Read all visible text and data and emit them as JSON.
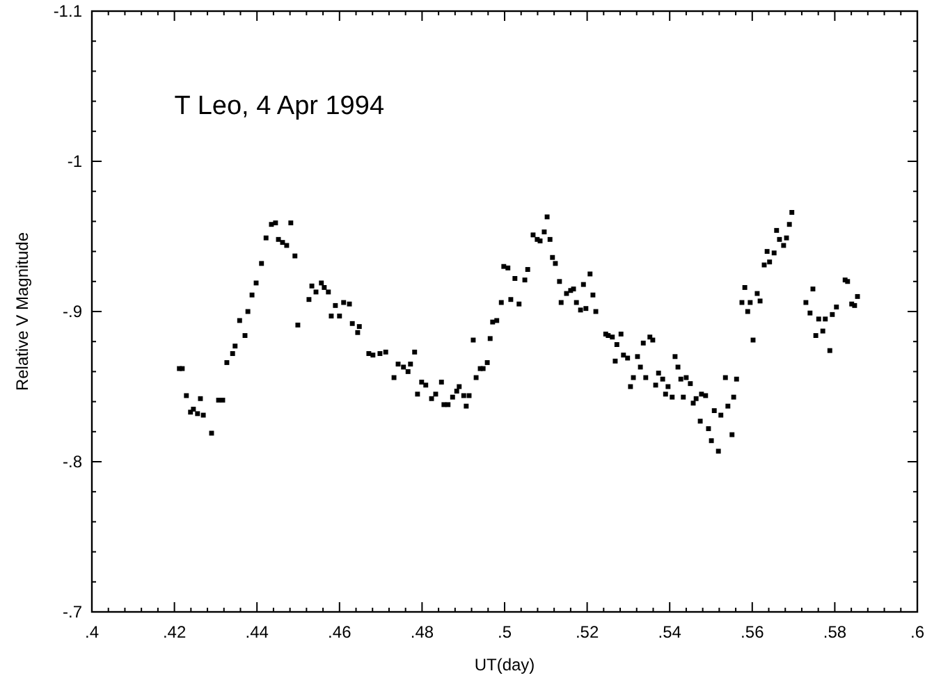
{
  "chart_data": {
    "type": "scatter",
    "title": "T Leo, 4 Apr 1994",
    "xlabel": "UT(day)",
    "ylabel": "Relative V Magnitude",
    "marker": "square",
    "grid": false,
    "xlim": [
      0.4,
      0.6
    ],
    "ylim": [
      -0.7,
      -1.1
    ],
    "xticks": [
      {
        "value": 0.4,
        "label": ".4"
      },
      {
        "value": 0.404,
        "label": null
      },
      {
        "value": 0.408,
        "label": null
      },
      {
        "value": 0.412,
        "label": null
      },
      {
        "value": 0.416,
        "label": null
      },
      {
        "value": 0.42,
        "label": ".42"
      },
      {
        "value": 0.424,
        "label": null
      },
      {
        "value": 0.428,
        "label": null
      },
      {
        "value": 0.432,
        "label": null
      },
      {
        "value": 0.436,
        "label": null
      },
      {
        "value": 0.44,
        "label": ".44"
      },
      {
        "value": 0.444,
        "label": null
      },
      {
        "value": 0.448,
        "label": null
      },
      {
        "value": 0.452,
        "label": null
      },
      {
        "value": 0.456,
        "label": null
      },
      {
        "value": 0.46,
        "label": ".46"
      },
      {
        "value": 0.464,
        "label": null
      },
      {
        "value": 0.468,
        "label": null
      },
      {
        "value": 0.472,
        "label": null
      },
      {
        "value": 0.476,
        "label": null
      },
      {
        "value": 0.48,
        "label": ".48"
      },
      {
        "value": 0.484,
        "label": null
      },
      {
        "value": 0.488,
        "label": null
      },
      {
        "value": 0.492,
        "label": null
      },
      {
        "value": 0.496,
        "label": null
      },
      {
        "value": 0.5,
        "label": ".5"
      },
      {
        "value": 0.504,
        "label": null
      },
      {
        "value": 0.508,
        "label": null
      },
      {
        "value": 0.512,
        "label": null
      },
      {
        "value": 0.516,
        "label": null
      },
      {
        "value": 0.52,
        "label": ".52"
      },
      {
        "value": 0.524,
        "label": null
      },
      {
        "value": 0.528,
        "label": null
      },
      {
        "value": 0.532,
        "label": null
      },
      {
        "value": 0.536,
        "label": null
      },
      {
        "value": 0.54,
        "label": ".54"
      },
      {
        "value": 0.544,
        "label": null
      },
      {
        "value": 0.548,
        "label": null
      },
      {
        "value": 0.552,
        "label": null
      },
      {
        "value": 0.556,
        "label": null
      },
      {
        "value": 0.56,
        "label": ".56"
      },
      {
        "value": 0.564,
        "label": null
      },
      {
        "value": 0.568,
        "label": null
      },
      {
        "value": 0.572,
        "label": null
      },
      {
        "value": 0.576,
        "label": null
      },
      {
        "value": 0.58,
        "label": ".58"
      },
      {
        "value": 0.584,
        "label": null
      },
      {
        "value": 0.588,
        "label": null
      },
      {
        "value": 0.592,
        "label": null
      },
      {
        "value": 0.596,
        "label": null
      },
      {
        "value": 0.6,
        "label": ".6"
      }
    ],
    "yticks": [
      {
        "value": -0.7,
        "label": "-.7"
      },
      {
        "value": -0.72,
        "label": null
      },
      {
        "value": -0.74,
        "label": null
      },
      {
        "value": -0.76,
        "label": null
      },
      {
        "value": -0.78,
        "label": null
      },
      {
        "value": -0.8,
        "label": "-.8"
      },
      {
        "value": -0.82,
        "label": null
      },
      {
        "value": -0.84,
        "label": null
      },
      {
        "value": -0.86,
        "label": null
      },
      {
        "value": -0.88,
        "label": null
      },
      {
        "value": -0.9,
        "label": "-.9"
      },
      {
        "value": -0.92,
        "label": null
      },
      {
        "value": -0.94,
        "label": null
      },
      {
        "value": -0.96,
        "label": null
      },
      {
        "value": -0.98,
        "label": null
      },
      {
        "value": -1,
        "label": "-1"
      },
      {
        "value": -1.02,
        "label": null
      },
      {
        "value": -1.04,
        "label": null
      },
      {
        "value": -1.06,
        "label": null
      },
      {
        "value": -1.08,
        "label": null
      },
      {
        "value": -1.1,
        "label": "-1.1"
      }
    ],
    "series": [
      {
        "color": "#000000",
        "x": [
          0.4212,
          0.4219,
          0.4229,
          0.4239,
          0.4263,
          0.4246,
          0.4256,
          0.427,
          0.429,
          0.4307,
          0.4317,
          0.4327,
          0.4341,
          0.4347,
          0.4358,
          0.4371,
          0.4378,
          0.4388,
          0.4398,
          0.4411,
          0.4422,
          0.4435,
          0.4445,
          0.4482,
          0.4452,
          0.4462,
          0.4472,
          0.4492,
          0.4499,
          0.4526,
          0.4533,
          0.4543,
          0.4556,
          0.4563,
          0.4573,
          0.458,
          0.46,
          0.459,
          0.461,
          0.4624,
          0.4631,
          0.4648,
          0.4644,
          0.4671,
          0.4681,
          0.4698,
          0.4712,
          0.4732,
          0.4742,
          0.4755,
          0.4766,
          0.4772,
          0.4782,
          0.4789,
          0.4799,
          0.4809,
          0.4823,
          0.4833,
          0.4847,
          0.4853,
          0.4863,
          0.4874,
          0.4884,
          0.489,
          0.4901,
          0.4914,
          0.4907,
          0.4924,
          0.4931,
          0.4941,
          0.4948,
          0.4958,
          0.4965,
          0.4971,
          0.4981,
          0.4992,
          0.5015,
          0.5035,
          0.4998,
          0.5008,
          0.5025,
          0.5049,
          0.5056,
          0.5069,
          0.5079,
          0.5086,
          0.5096,
          0.5103,
          0.511,
          0.5116,
          0.5123,
          0.5133,
          0.5137,
          0.515,
          0.516,
          0.5167,
          0.5174,
          0.5184,
          0.5197,
          0.5191,
          0.5207,
          0.5214,
          0.5221,
          0.5245,
          0.5251,
          0.5261,
          0.5272,
          0.5282,
          0.5288,
          0.5298,
          0.5268,
          0.5322,
          0.5336,
          0.5352,
          0.5359,
          0.5329,
          0.5312,
          0.5305,
          0.5342,
          0.5373,
          0.5383,
          0.5396,
          0.5366,
          0.539,
          0.5406,
          0.5413,
          0.542,
          0.5427,
          0.544,
          0.545,
          0.5433,
          0.5457,
          0.5464,
          0.5477,
          0.5487,
          0.5535,
          0.5562,
          0.5555,
          0.5508,
          0.5524,
          0.5541,
          0.5474,
          0.5494,
          0.5501,
          0.5518,
          0.5551,
          0.5602,
          0.5575,
          0.5582,
          0.5595,
          0.5612,
          0.5619,
          0.5589,
          0.5629,
          0.5642,
          0.5636,
          0.5653,
          0.5676,
          0.5666,
          0.5683,
          0.5659,
          0.569,
          0.5696,
          0.5747,
          0.573,
          0.574,
          0.5761,
          0.5777,
          0.5754,
          0.5771,
          0.5788,
          0.5794,
          0.5804,
          0.5825,
          0.5831,
          0.5841,
          0.5848,
          0.5855
        ],
        "values": [
          -0.862,
          -0.862,
          -0.844,
          -0.833,
          -0.842,
          -0.835,
          -0.832,
          -0.831,
          -0.819,
          -0.841,
          -0.841,
          -0.866,
          -0.872,
          -0.877,
          -0.894,
          -0.884,
          -0.9,
          -0.911,
          -0.919,
          -0.932,
          -0.949,
          -0.958,
          -0.959,
          -0.959,
          -0.948,
          -0.946,
          -0.944,
          -0.937,
          -0.891,
          -0.908,
          -0.917,
          -0.913,
          -0.919,
          -0.916,
          -0.913,
          -0.897,
          -0.897,
          -0.904,
          -0.906,
          -0.905,
          -0.892,
          -0.89,
          -0.886,
          -0.872,
          -0.871,
          -0.872,
          -0.873,
          -0.856,
          -0.865,
          -0.863,
          -0.86,
          -0.865,
          -0.873,
          -0.845,
          -0.853,
          -0.851,
          -0.842,
          -0.845,
          -0.853,
          -0.838,
          -0.838,
          -0.843,
          -0.847,
          -0.85,
          -0.844,
          -0.844,
          -0.837,
          -0.881,
          -0.856,
          -0.862,
          -0.862,
          -0.866,
          -0.882,
          -0.893,
          -0.894,
          -0.906,
          -0.908,
          -0.905,
          -0.93,
          -0.929,
          -0.922,
          -0.921,
          -0.928,
          -0.951,
          -0.948,
          -0.947,
          -0.953,
          -0.963,
          -0.948,
          -0.936,
          -0.932,
          -0.92,
          -0.906,
          -0.912,
          -0.914,
          -0.915,
          -0.906,
          -0.901,
          -0.902,
          -0.918,
          -0.925,
          -0.911,
          -0.9,
          -0.885,
          -0.884,
          -0.883,
          -0.878,
          -0.885,
          -0.871,
          -0.869,
          -0.867,
          -0.87,
          -0.879,
          -0.883,
          -0.881,
          -0.863,
          -0.856,
          -0.85,
          -0.856,
          -0.859,
          -0.855,
          -0.85,
          -0.851,
          -0.845,
          -0.843,
          -0.87,
          -0.863,
          -0.855,
          -0.856,
          -0.852,
          -0.843,
          -0.839,
          -0.842,
          -0.845,
          -0.844,
          -0.856,
          -0.855,
          -0.843,
          -0.834,
          -0.831,
          -0.837,
          -0.827,
          -0.822,
          -0.814,
          -0.807,
          -0.818,
          -0.881,
          -0.906,
          -0.916,
          -0.906,
          -0.912,
          -0.907,
          -0.9,
          -0.931,
          -0.933,
          -0.94,
          -0.939,
          -0.944,
          -0.948,
          -0.949,
          -0.954,
          -0.958,
          -0.966,
          -0.915,
          -0.906,
          -0.899,
          -0.895,
          -0.895,
          -0.884,
          -0.887,
          -0.874,
          -0.898,
          -0.903,
          -0.921,
          -0.92,
          -0.905,
          -0.904,
          -0.91
        ]
      }
    ]
  }
}
